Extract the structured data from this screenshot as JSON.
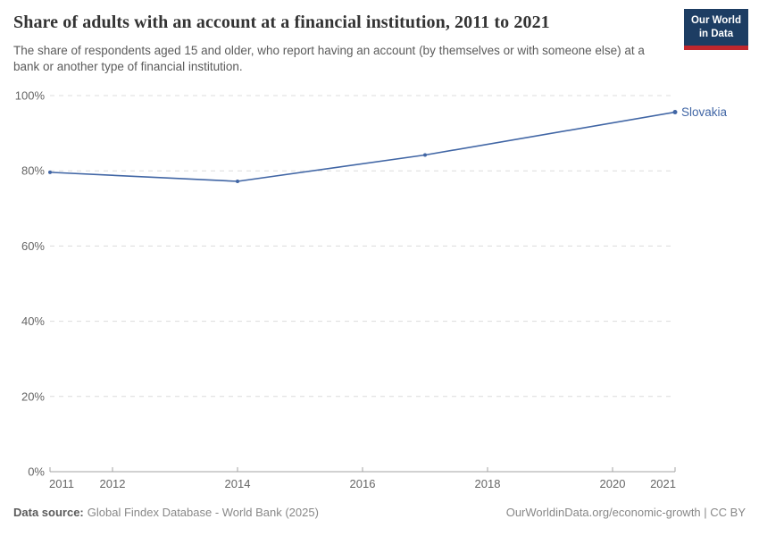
{
  "header": {
    "title": "Share of adults with an account at a financial institution, 2011 to 2021",
    "subtitle": "The share of respondents aged 15 and older, who report having an account (by themselves or with someone else) at a bank or another type of financial institution.",
    "logo": {
      "line1": "Our World",
      "line2": "in Data"
    }
  },
  "chart_data": {
    "type": "line",
    "title": "Share of adults with an account at a financial institution, 2011 to 2021",
    "xlabel": "",
    "ylabel": "",
    "xlim": [
      2011,
      2021
    ],
    "ylim": [
      0,
      100
    ],
    "x_ticks": [
      2011,
      2012,
      2014,
      2016,
      2018,
      2020,
      2021
    ],
    "y_ticks": [
      0,
      20,
      40,
      60,
      80,
      100
    ],
    "y_tick_suffix": "%",
    "grid": "horizontal-dashed",
    "legend_position": "end-of-line",
    "series": [
      {
        "name": "Slovakia",
        "x": [
          2011,
          2014,
          2017,
          2021
        ],
        "values": [
          79.6,
          77.2,
          84.2,
          95.6
        ],
        "color": "#4166a5"
      }
    ]
  },
  "footer": {
    "datasource_label": "Data source:",
    "datasource_value": "Global Findex Database - World Bank (2025)",
    "attribution": "OurWorldinData.org/economic-growth | CC BY"
  },
  "colors": {
    "accent_line": "#4166a5",
    "grid": "#dcdcdc",
    "axis": "#a3a3a3",
    "tick_label": "#666666",
    "title": "#333333",
    "subtitle": "#5b5b5b",
    "footer_text": "#888888",
    "logo_bg": "#1d3d63",
    "logo_stripe": "#c0272d"
  }
}
